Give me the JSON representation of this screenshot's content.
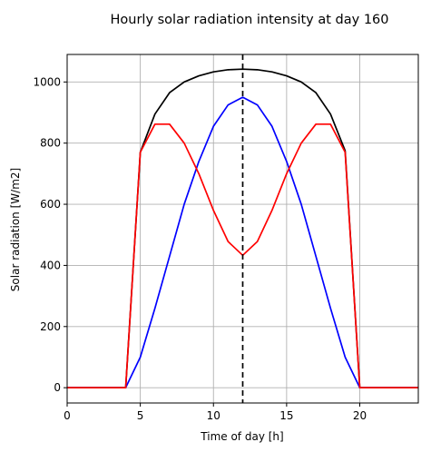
{
  "chart_data": {
    "type": "line",
    "title": "Hourly solar radiation intensity at day 160",
    "xlabel": "Time of day [h]",
    "ylabel": "Solar radiation [W/m2]",
    "xlim": [
      0,
      24
    ],
    "ylim": [
      -50,
      1090
    ],
    "xticks": [
      0,
      5,
      10,
      15,
      20
    ],
    "yticks": [
      0,
      200,
      400,
      600,
      800,
      1000
    ],
    "grid": true,
    "vline": {
      "x": 12,
      "style": "dashed",
      "color": "#000000"
    },
    "series": [
      {
        "color": "#000000",
        "x": [
          0,
          1,
          2,
          3,
          4,
          5,
          6,
          7,
          8,
          9,
          10,
          11,
          12,
          13,
          14,
          15,
          16,
          17,
          18,
          19,
          20,
          21,
          22,
          23,
          24
        ],
        "y": [
          0,
          0,
          0,
          0,
          0,
          770,
          895,
          965,
          1000,
          1020,
          1033,
          1040,
          1042,
          1040,
          1033,
          1020,
          1000,
          965,
          895,
          775,
          0,
          0,
          0,
          0,
          0
        ]
      },
      {
        "color": "#0000ff",
        "x": [
          0,
          1,
          2,
          3,
          4,
          5,
          6,
          7,
          8,
          9,
          10,
          11,
          12,
          13,
          14,
          15,
          16,
          17,
          18,
          19,
          20,
          21,
          22,
          23,
          24
        ],
        "y": [
          0,
          0,
          0,
          0,
          0,
          100,
          260,
          430,
          600,
          740,
          855,
          925,
          950,
          925,
          855,
          740,
          600,
          430,
          260,
          100,
          0,
          0,
          0,
          0,
          0
        ]
      },
      {
        "color": "#ff0000",
        "x": [
          0,
          1,
          2,
          3,
          4,
          5,
          6,
          7,
          8,
          9,
          10,
          11,
          12,
          13,
          14,
          15,
          16,
          17,
          18,
          19,
          20,
          21,
          22,
          23,
          24
        ],
        "y": [
          0,
          0,
          0,
          0,
          0,
          770,
          862,
          862,
          800,
          700,
          580,
          478,
          433,
          478,
          580,
          700,
          800,
          862,
          862,
          770,
          0,
          0,
          0,
          0,
          0
        ]
      }
    ]
  }
}
